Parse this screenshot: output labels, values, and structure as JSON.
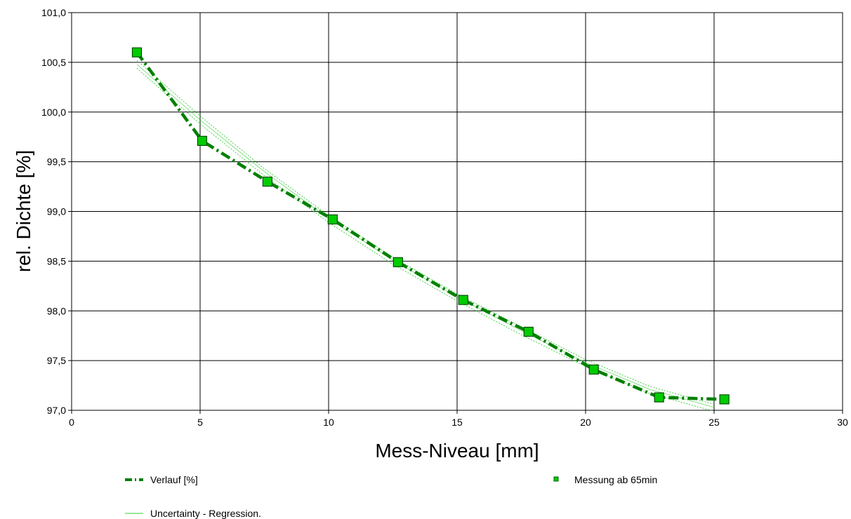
{
  "chart_data": {
    "type": "line",
    "xlabel": "Mess-Niveau [mm]",
    "ylabel": "rel. Dichte  [%]",
    "xlim": [
      0,
      30
    ],
    "ylim": [
      97.0,
      101.0
    ],
    "x_ticks": [
      0,
      5,
      10,
      15,
      20,
      25,
      30
    ],
    "x_tick_labels": [
      "0",
      "5",
      "10",
      "15",
      "20",
      "25",
      "30"
    ],
    "y_ticks": [
      97.0,
      97.5,
      98.0,
      98.5,
      99.0,
      99.5,
      100.0,
      100.5,
      101.0
    ],
    "y_tick_labels": [
      "97,0",
      "97,5",
      "98,0",
      "98,5",
      "99,0",
      "99,5",
      "100,0",
      "100,5",
      "101,0"
    ],
    "grid": true,
    "legend_position": "bottom",
    "series": [
      {
        "name": "Verlauf [%]",
        "style": "dash-dot",
        "color": "#008000",
        "x": [
          2.54,
          5.08,
          7.62,
          10.16,
          12.7,
          15.24,
          17.78,
          20.32,
          22.86,
          25.4
        ],
        "y": [
          100.6,
          99.71,
          99.3,
          98.92,
          98.49,
          98.11,
          97.79,
          97.41,
          97.13,
          97.11
        ]
      },
      {
        "name": "Messung ab 65min",
        "style": "marker-square",
        "color": "#00cc00",
        "x": [
          2.54,
          5.08,
          7.62,
          10.16,
          12.7,
          15.24,
          17.78,
          20.32,
          22.86,
          25.4
        ],
        "y": [
          100.6,
          99.71,
          99.3,
          98.92,
          98.49,
          98.11,
          97.79,
          97.41,
          97.13,
          97.11
        ]
      },
      {
        "name": "Uncertainty - Regression.",
        "style": "thin-dotted",
        "color": "#33cc33",
        "bands": [
          {
            "x": [
              2.54,
              5.0,
              7.5,
              10.0,
              12.5,
              15.0,
              17.5,
              20.0,
              22.5,
              25.0
            ],
            "y": [
              100.52,
              99.96,
              99.43,
              98.96,
              98.54,
              98.17,
              97.84,
              97.51,
              97.24,
              97.06
            ]
          },
          {
            "x": [
              2.54,
              5.0,
              7.5,
              10.0,
              12.5,
              15.0,
              17.5,
              20.0,
              22.5,
              25.0
            ],
            "y": [
              100.44,
              99.88,
              99.36,
              98.89,
              98.47,
              98.1,
              97.76,
              97.44,
              97.17,
              96.99
            ]
          },
          {
            "x": [
              2.54,
              5.0,
              7.5,
              10.0,
              12.5,
              15.0,
              17.5,
              20.0,
              22.5,
              25.0
            ],
            "y": [
              100.48,
              99.92,
              99.4,
              98.93,
              98.51,
              98.14,
              97.8,
              97.48,
              97.21,
              97.03
            ]
          }
        ]
      }
    ]
  },
  "legend": {
    "verlauf_label": "Verlauf [%]",
    "messung_label": "Messung ab 65min",
    "uncertainty_label": "Uncertainty - Regression."
  }
}
